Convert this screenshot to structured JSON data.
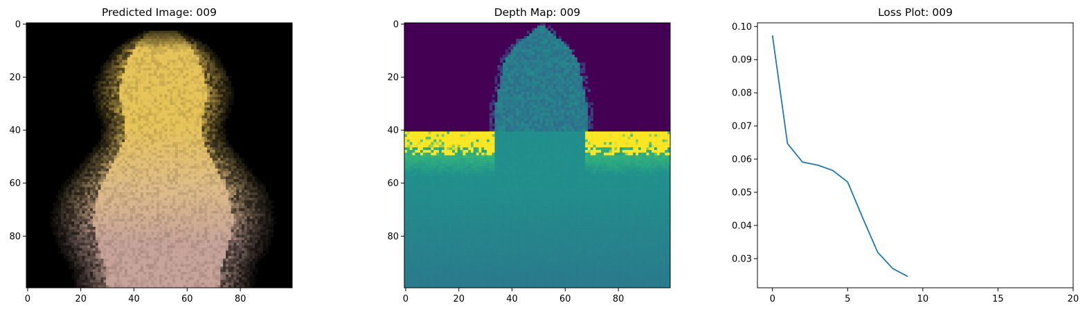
{
  "figure": {
    "panels": [
      {
        "title": "Predicted Image: 009"
      },
      {
        "title": "Depth Map: 009"
      },
      {
        "title": "Loss Plot: 009"
      }
    ]
  },
  "chart_data": [
    {
      "type": "heatmap",
      "title": "Predicted Image: 009",
      "colormap": "rgb",
      "xlim": [
        0,
        99
      ],
      "ylim": [
        99,
        0
      ],
      "xticks": [
        0,
        20,
        40,
        60,
        80
      ],
      "yticks": [
        0,
        20,
        40,
        60,
        80
      ],
      "background": "#000000",
      "colors": {
        "head": "#e8c55a",
        "body": "#e0bd8a",
        "lower_body": "#c9a49a"
      },
      "subject_outline": [
        {
          "y": 3,
          "half_width": 3
        },
        {
          "y": 8,
          "half_width": 10
        },
        {
          "y": 14,
          "half_width": 14
        },
        {
          "y": 20,
          "half_width": 17
        },
        {
          "y": 26,
          "half_width": 18
        },
        {
          "y": 32,
          "half_width": 17
        },
        {
          "y": 38,
          "half_width": 15
        },
        {
          "y": 44,
          "half_width": 16
        },
        {
          "y": 50,
          "half_width": 20
        },
        {
          "y": 56,
          "half_width": 24
        },
        {
          "y": 62,
          "half_width": 28
        },
        {
          "y": 68,
          "half_width": 30
        },
        {
          "y": 74,
          "half_width": 31
        },
        {
          "y": 80,
          "half_width": 30
        },
        {
          "y": 86,
          "half_width": 28
        },
        {
          "y": 92,
          "half_width": 25
        },
        {
          "y": 99,
          "half_width": 24
        }
      ],
      "subject_center_x": 51
    },
    {
      "type": "heatmap",
      "title": "Depth Map: 009",
      "colormap": "viridis",
      "xlim": [
        0,
        99
      ],
      "ylim": [
        99,
        0
      ],
      "xticks": [
        0,
        20,
        40,
        60,
        80
      ],
      "yticks": [
        0,
        20,
        40,
        60,
        80
      ],
      "colors": {
        "far": "#440154",
        "mid_blue": "#3b528b",
        "teal": "#21918c",
        "green": "#35b779",
        "near": "#fde725"
      },
      "horizon_row": 42
    },
    {
      "type": "line",
      "title": "Loss Plot: 009",
      "xlabel": "",
      "ylabel": "",
      "xlim": [
        -1,
        20
      ],
      "ylim": [
        0.0212,
        0.1011
      ],
      "xticks": [
        0,
        5,
        10,
        15,
        20
      ],
      "yticks": [
        0.03,
        0.04,
        0.05,
        0.06,
        0.07,
        0.08,
        0.09,
        0.1
      ],
      "ytick_labels": [
        "0.03",
        "0.04",
        "0.05",
        "0.06",
        "0.07",
        "0.08",
        "0.09",
        "0.10"
      ],
      "series": [
        {
          "color": "#1f77b4",
          "x": [
            0,
            1,
            2,
            3,
            4,
            5,
            6,
            7,
            8,
            9
          ],
          "values": [
            0.0973,
            0.0647,
            0.0591,
            0.0582,
            0.0566,
            0.0531,
            0.0423,
            0.0319,
            0.027,
            0.0246
          ]
        }
      ]
    }
  ]
}
